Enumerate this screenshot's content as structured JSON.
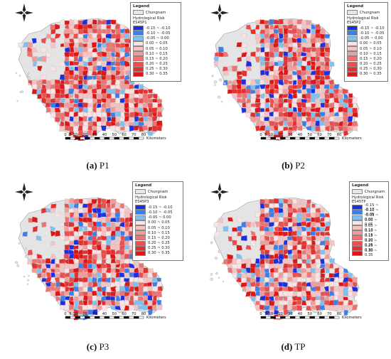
{
  "legend": {
    "title": "Legend",
    "base_label": "Chungnam",
    "risk_label": "Hydrological Risk",
    "classes": [
      {
        "label": "-0.15 ~ -0.10",
        "color": "#1f2fe0"
      },
      {
        "label": "-0.10 ~ -0.05",
        "color": "#3d7fe8"
      },
      {
        "label": "-0.05 ~ 0.00",
        "color": "#7fc0f0"
      },
      {
        "label": "0.00 ~ 0.05",
        "color": "#fbe3e3"
      },
      {
        "label": "0.05 ~ 0.10",
        "color": "#f6c2c2"
      },
      {
        "label": "0.10 ~ 0.15",
        "color": "#f29b9b"
      },
      {
        "label": "0.15 ~ 0.20",
        "color": "#ee7474"
      },
      {
        "label": "0.20 ~ 0.25",
        "color": "#ea4f4f"
      },
      {
        "label": "0.25 ~ 0.30",
        "color": "#e53030"
      },
      {
        "label": "0.30 ~ 0.35",
        "color": "#e01515"
      }
    ]
  },
  "scale": {
    "ticks": [
      "0",
      "5",
      "10",
      "20",
      "30",
      "40",
      "50",
      "60",
      "70",
      "80"
    ],
    "unit": "Kilometers"
  },
  "panels": [
    {
      "id": "P1",
      "series": "ES45P1",
      "caption_letter": "(a)",
      "caption_text": "P1",
      "shares": {
        "blue": 0.14,
        "light": 0.3,
        "red": 0.56
      }
    },
    {
      "id": "P2",
      "series": "ES45P2",
      "caption_letter": "(b)",
      "caption_text": "P2",
      "shares": {
        "blue": 0.16,
        "light": 0.26,
        "red": 0.58
      }
    },
    {
      "id": "P3",
      "series": "ES45P3",
      "caption_letter": "(c)",
      "caption_text": "P3",
      "shares": {
        "blue": 0.22,
        "light": 0.3,
        "red": 0.48
      }
    },
    {
      "id": "TP",
      "series": "ES45TP",
      "caption_letter": "(d)",
      "caption_text": "TP",
      "shares": {
        "blue": 0.2,
        "light": 0.3,
        "red": 0.5
      }
    }
  ]
}
